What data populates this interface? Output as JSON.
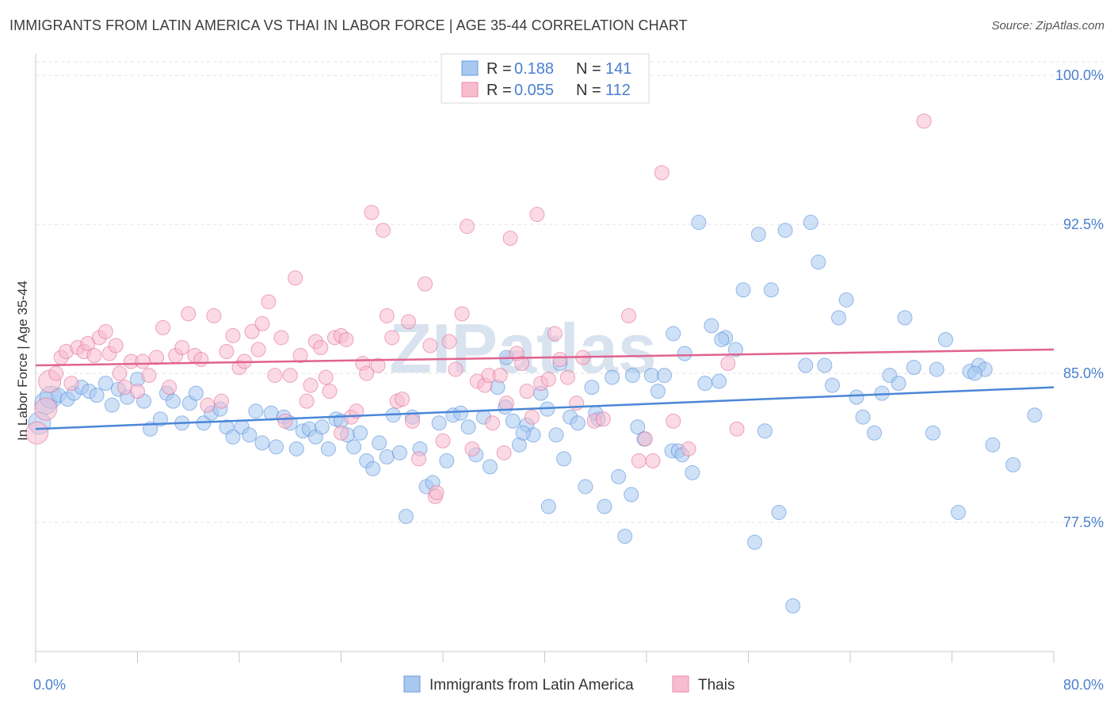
{
  "title": "IMMIGRANTS FROM LATIN AMERICA VS THAI IN LABOR FORCE | AGE 35-44 CORRELATION CHART",
  "source": "Source: ZipAtlas.com",
  "watermark": "ZIPatlas",
  "legend": {
    "rows": [
      {
        "r_label": "R =",
        "r_value": "0.188",
        "n_label": "N =",
        "n_value": "141",
        "color": "#a8c8f0",
        "stroke": "#6a9be0"
      },
      {
        "r_label": "R =",
        "r_value": "0.055",
        "n_label": "N =",
        "n_value": "112",
        "color": "#f8bccf",
        "stroke": "#e88aa8"
      }
    ]
  },
  "chart_data": {
    "type": "scatter",
    "title": "IMMIGRANTS FROM LATIN AMERICA VS THAI IN LABOR FORCE | AGE 35-44 CORRELATION CHART",
    "ylabel": "In Labor Force | Age 35-44",
    "xlabel": "",
    "xlim": [
      0,
      80
    ],
    "ylim": [
      71.0,
      101.0
    ],
    "x_tick_labels": [
      "0.0%",
      "80.0%"
    ],
    "y_ticks": [
      77.5,
      85.0,
      92.5,
      100.0
    ],
    "y_tick_labels": [
      "77.5%",
      "85.0%",
      "92.5%",
      "100.0%"
    ],
    "grid": true,
    "legend_position": "bottom",
    "series": [
      {
        "name": "Immigrants from Latin America",
        "color": "#4a86d8",
        "fill": "#a8c8f0",
        "trend": {
          "x": [
            0,
            80
          ],
          "y": [
            82.2,
            84.3
          ]
        },
        "points": [
          [
            0.3,
            82.5
          ],
          [
            0.8,
            83.5
          ],
          [
            1.2,
            83.8
          ],
          [
            1.8,
            83.9
          ],
          [
            2.5,
            83.7
          ],
          [
            3.0,
            84.0
          ],
          [
            3.6,
            84.3
          ],
          [
            4.2,
            84.1
          ],
          [
            4.8,
            83.9
          ],
          [
            5.5,
            84.5
          ],
          [
            6.0,
            83.4
          ],
          [
            6.5,
            84.2
          ],
          [
            7.2,
            83.8
          ],
          [
            8.0,
            84.7
          ],
          [
            8.5,
            83.6
          ],
          [
            9.0,
            82.2
          ],
          [
            9.8,
            82.7
          ],
          [
            10.3,
            84.0
          ],
          [
            10.8,
            83.6
          ],
          [
            11.5,
            82.5
          ],
          [
            12.1,
            83.5
          ],
          [
            12.6,
            84.0
          ],
          [
            13.2,
            82.5
          ],
          [
            13.8,
            83.0
          ],
          [
            14.5,
            83.2
          ],
          [
            15.0,
            82.3
          ],
          [
            15.5,
            81.8
          ],
          [
            16.2,
            82.3
          ],
          [
            16.8,
            81.9
          ],
          [
            17.3,
            83.1
          ],
          [
            17.8,
            81.5
          ],
          [
            18.5,
            83.0
          ],
          [
            18.9,
            81.3
          ],
          [
            19.5,
            82.8
          ],
          [
            20.0,
            82.5
          ],
          [
            20.5,
            81.2
          ],
          [
            21.0,
            82.1
          ],
          [
            21.5,
            82.2
          ],
          [
            22.0,
            81.8
          ],
          [
            22.5,
            82.3
          ],
          [
            23.0,
            81.2
          ],
          [
            23.6,
            82.7
          ],
          [
            24.0,
            82.6
          ],
          [
            24.5,
            81.9
          ],
          [
            25.0,
            81.3
          ],
          [
            25.5,
            82.0
          ],
          [
            26.0,
            80.6
          ],
          [
            26.5,
            80.2
          ],
          [
            27.0,
            81.5
          ],
          [
            27.6,
            80.8
          ],
          [
            28.1,
            82.9
          ],
          [
            28.6,
            81.0
          ],
          [
            29.1,
            77.8
          ],
          [
            29.6,
            82.8
          ],
          [
            30.2,
            81.2
          ],
          [
            30.7,
            79.3
          ],
          [
            31.2,
            79.5
          ],
          [
            31.7,
            82.5
          ],
          [
            32.3,
            80.6
          ],
          [
            32.8,
            82.9
          ],
          [
            33.4,
            83.0
          ],
          [
            34.0,
            82.3
          ],
          [
            34.6,
            80.9
          ],
          [
            35.2,
            82.8
          ],
          [
            35.7,
            80.3
          ],
          [
            36.3,
            84.3
          ],
          [
            36.9,
            83.3
          ],
          [
            37.5,
            82.6
          ],
          [
            38.0,
            81.4
          ],
          [
            38.6,
            82.4
          ],
          [
            39.1,
            81.9
          ],
          [
            39.7,
            84.0
          ],
          [
            40.3,
            78.3
          ],
          [
            40.9,
            81.9
          ],
          [
            41.5,
            80.7
          ],
          [
            42.0,
            82.8
          ],
          [
            42.6,
            82.5
          ],
          [
            43.2,
            79.3
          ],
          [
            43.7,
            84.3
          ],
          [
            44.2,
            82.7
          ],
          [
            44.7,
            78.3
          ],
          [
            45.3,
            84.8
          ],
          [
            45.8,
            79.8
          ],
          [
            46.3,
            76.8
          ],
          [
            46.8,
            78.9
          ],
          [
            47.3,
            82.3
          ],
          [
            47.8,
            81.7
          ],
          [
            48.4,
            84.9
          ],
          [
            48.9,
            84.1
          ],
          [
            49.4,
            84.9
          ],
          [
            50.0,
            81.1
          ],
          [
            50.5,
            81.1
          ],
          [
            50.1,
            87.0
          ],
          [
            51.0,
            86.0
          ],
          [
            51.6,
            80.0
          ],
          [
            52.1,
            92.6
          ],
          [
            52.6,
            84.5
          ],
          [
            53.1,
            87.4
          ],
          [
            53.7,
            84.6
          ],
          [
            54.2,
            86.8
          ],
          [
            55.0,
            86.2
          ],
          [
            55.6,
            89.2
          ],
          [
            56.5,
            76.5
          ],
          [
            56.8,
            92.0
          ],
          [
            57.3,
            82.1
          ],
          [
            57.8,
            89.2
          ],
          [
            58.4,
            78.0
          ],
          [
            58.9,
            92.2
          ],
          [
            59.5,
            73.3
          ],
          [
            60.5,
            85.4
          ],
          [
            60.9,
            92.6
          ],
          [
            61.5,
            90.6
          ],
          [
            62.0,
            85.4
          ],
          [
            62.6,
            84.4
          ],
          [
            63.1,
            87.8
          ],
          [
            63.7,
            88.7
          ],
          [
            64.5,
            83.8
          ],
          [
            65.0,
            82.8
          ],
          [
            65.9,
            82.0
          ],
          [
            66.5,
            84.0
          ],
          [
            67.1,
            84.9
          ],
          [
            67.8,
            84.5
          ],
          [
            68.3,
            87.8
          ],
          [
            69.0,
            85.3
          ],
          [
            70.5,
            82.0
          ],
          [
            70.8,
            85.2
          ],
          [
            71.5,
            86.7
          ],
          [
            72.5,
            78.0
          ],
          [
            73.4,
            85.1
          ],
          [
            74.1,
            85.4
          ],
          [
            74.6,
            85.2
          ],
          [
            75.2,
            81.4
          ],
          [
            76.8,
            80.4
          ],
          [
            78.5,
            82.9
          ],
          [
            73.8,
            85.0
          ],
          [
            53.9,
            86.7
          ],
          [
            46.9,
            84.9
          ],
          [
            50.8,
            80.9
          ],
          [
            44.0,
            83.0
          ],
          [
            41.2,
            85.5
          ],
          [
            40.2,
            83.2
          ],
          [
            38.3,
            82.0
          ],
          [
            37.0,
            85.8
          ]
        ]
      },
      {
        "name": "Thais",
        "color": "#e0628f",
        "fill": "#f8bccf",
        "trend": {
          "x": [
            0,
            80
          ],
          "y": [
            85.4,
            86.2
          ]
        },
        "points": [
          [
            0.1,
            82.0
          ],
          [
            0.8,
            83.2
          ],
          [
            1.1,
            84.6
          ],
          [
            1.6,
            85.0
          ],
          [
            2.0,
            85.8
          ],
          [
            2.4,
            86.1
          ],
          [
            2.8,
            84.5
          ],
          [
            3.3,
            86.3
          ],
          [
            3.8,
            86.1
          ],
          [
            4.1,
            86.5
          ],
          [
            4.6,
            85.9
          ],
          [
            5.0,
            86.8
          ],
          [
            5.5,
            87.1
          ],
          [
            5.8,
            86.0
          ],
          [
            6.3,
            86.4
          ],
          [
            6.6,
            85.0
          ],
          [
            7.0,
            84.3
          ],
          [
            7.5,
            85.6
          ],
          [
            8.0,
            84.1
          ],
          [
            8.4,
            85.6
          ],
          [
            8.9,
            84.9
          ],
          [
            9.5,
            85.8
          ],
          [
            10.0,
            87.3
          ],
          [
            10.5,
            84.3
          ],
          [
            11.0,
            85.9
          ],
          [
            11.5,
            86.3
          ],
          [
            12.0,
            88.0
          ],
          [
            12.5,
            85.9
          ],
          [
            13.0,
            85.7
          ],
          [
            13.5,
            83.4
          ],
          [
            14.0,
            87.9
          ],
          [
            14.6,
            83.6
          ],
          [
            15.0,
            86.1
          ],
          [
            15.5,
            86.9
          ],
          [
            16.0,
            85.3
          ],
          [
            16.4,
            85.6
          ],
          [
            17.0,
            87.1
          ],
          [
            17.5,
            86.2
          ],
          [
            17.8,
            87.5
          ],
          [
            18.3,
            88.6
          ],
          [
            18.8,
            84.9
          ],
          [
            19.3,
            86.8
          ],
          [
            19.6,
            82.6
          ],
          [
            20.0,
            84.9
          ],
          [
            20.4,
            89.8
          ],
          [
            20.8,
            85.9
          ],
          [
            21.3,
            83.6
          ],
          [
            21.6,
            84.4
          ],
          [
            22.0,
            86.6
          ],
          [
            22.4,
            86.3
          ],
          [
            22.8,
            84.8
          ],
          [
            23.1,
            84.1
          ],
          [
            23.5,
            86.8
          ],
          [
            24.0,
            86.9
          ],
          [
            24.4,
            86.7
          ],
          [
            24.8,
            82.8
          ],
          [
            25.2,
            83.1
          ],
          [
            25.7,
            85.5
          ],
          [
            26.0,
            85.0
          ],
          [
            26.4,
            93.1
          ],
          [
            26.9,
            85.4
          ],
          [
            27.3,
            92.2
          ],
          [
            27.6,
            87.9
          ],
          [
            28.0,
            86.8
          ],
          [
            28.4,
            83.6
          ],
          [
            28.8,
            83.7
          ],
          [
            29.3,
            87.6
          ],
          [
            29.6,
            82.6
          ],
          [
            30.1,
            80.7
          ],
          [
            30.6,
            89.5
          ],
          [
            31.0,
            86.4
          ],
          [
            31.4,
            78.8
          ],
          [
            31.5,
            79.0
          ],
          [
            32.0,
            81.6
          ],
          [
            32.5,
            86.6
          ],
          [
            33.0,
            85.2
          ],
          [
            33.5,
            88.0
          ],
          [
            33.9,
            92.4
          ],
          [
            34.3,
            81.2
          ],
          [
            34.7,
            84.6
          ],
          [
            35.3,
            84.4
          ],
          [
            35.6,
            84.9
          ],
          [
            35.9,
            82.5
          ],
          [
            36.5,
            84.9
          ],
          [
            36.8,
            81.0
          ],
          [
            37.0,
            83.5
          ],
          [
            37.3,
            91.8
          ],
          [
            37.8,
            86.0
          ],
          [
            38.2,
            85.5
          ],
          [
            38.6,
            84.1
          ],
          [
            39.0,
            82.8
          ],
          [
            39.4,
            93.0
          ],
          [
            39.7,
            84.5
          ],
          [
            40.3,
            84.7
          ],
          [
            40.8,
            87.0
          ],
          [
            41.2,
            85.7
          ],
          [
            41.8,
            84.8
          ],
          [
            42.5,
            83.5
          ],
          [
            43.0,
            85.8
          ],
          [
            43.9,
            82.6
          ],
          [
            44.6,
            82.7
          ],
          [
            46.6,
            87.9
          ],
          [
            47.4,
            80.6
          ],
          [
            47.9,
            81.7
          ],
          [
            48.5,
            80.6
          ],
          [
            49.2,
            95.1
          ],
          [
            50.1,
            82.6
          ],
          [
            51.3,
            81.2
          ],
          [
            54.4,
            85.5
          ],
          [
            55.1,
            82.2
          ],
          [
            69.8,
            97.7
          ],
          [
            24.0,
            82.0
          ]
        ]
      }
    ]
  },
  "bottom_legend": {
    "items": [
      {
        "label": "Immigrants from Latin America",
        "color": "#a8c8f0",
        "stroke": "#6a9be0"
      },
      {
        "label": "Thais",
        "color": "#f8bccf",
        "stroke": "#e88aa8"
      }
    ]
  }
}
